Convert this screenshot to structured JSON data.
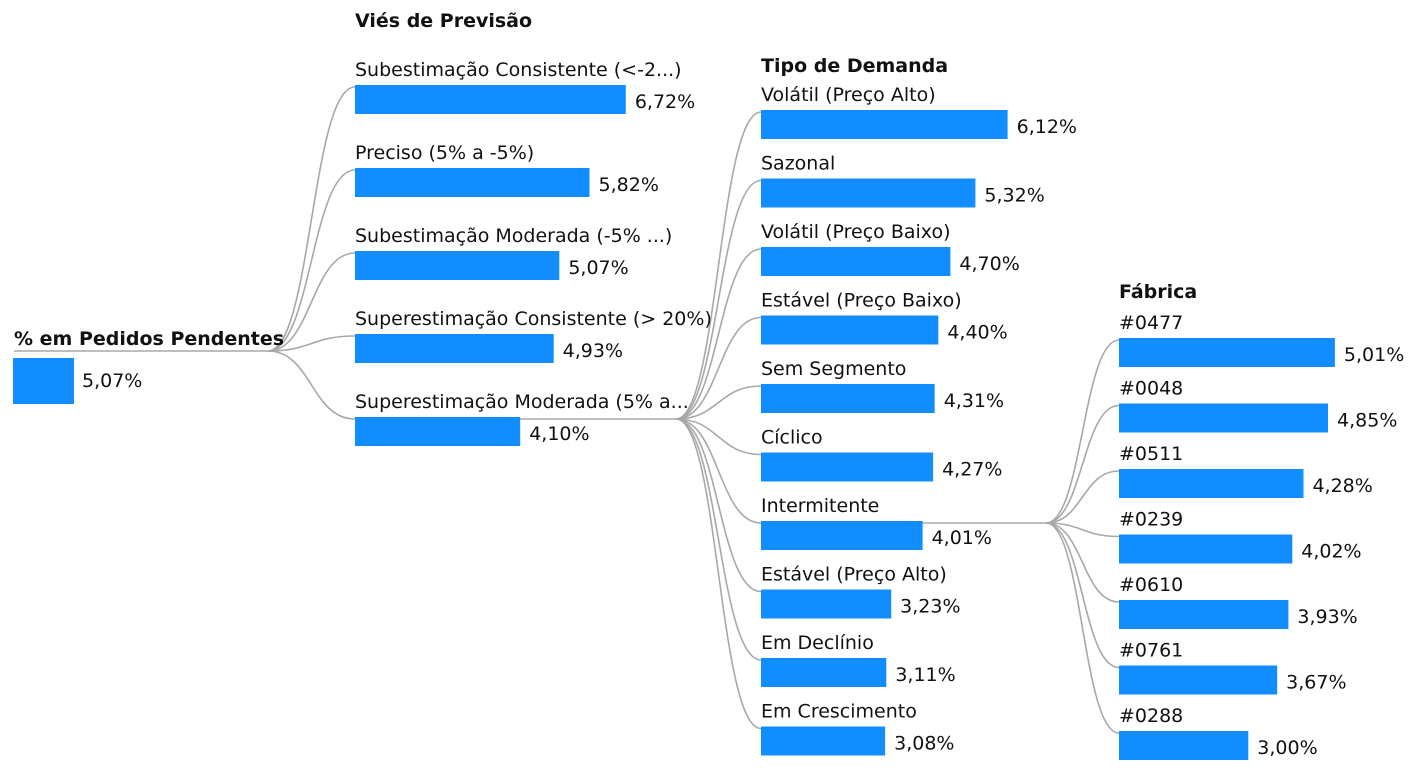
{
  "chart_data": {
    "type": "decomposition-tree",
    "root": {
      "title": "% em Pedidos Pendentes",
      "value": 5.07,
      "value_label": "5,07%"
    },
    "levels": [
      {
        "title": "Viés de Previsão",
        "expanded_index": 4,
        "nodes": [
          {
            "label": "Subestimação Consistente (<-2...)",
            "value": 6.72,
            "value_label": "6,72%"
          },
          {
            "label": "Preciso (5% a -5%)",
            "value": 5.82,
            "value_label": "5,82%"
          },
          {
            "label": "Subestimação Moderada (-5% ...)",
            "value": 5.07,
            "value_label": "5,07%"
          },
          {
            "label": "Superestimação Consistente (> 20%)",
            "value": 4.93,
            "value_label": "4,93%"
          },
          {
            "label": "Superestimação Moderada (5% a...",
            "value": 4.1,
            "value_label": "4,10%"
          }
        ]
      },
      {
        "title": "Tipo de Demanda",
        "expanded_index": 6,
        "nodes": [
          {
            "label": "Volátil (Preço Alto)",
            "value": 6.12,
            "value_label": "6,12%"
          },
          {
            "label": "Sazonal",
            "value": 5.32,
            "value_label": "5,32%"
          },
          {
            "label": "Volátil (Preço Baixo)",
            "value": 4.7,
            "value_label": "4,70%"
          },
          {
            "label": "Estável (Preço Baixo)",
            "value": 4.4,
            "value_label": "4,40%"
          },
          {
            "label": "Sem Segmento",
            "value": 4.31,
            "value_label": "4,31%"
          },
          {
            "label": "Cíclico",
            "value": 4.27,
            "value_label": "4,27%"
          },
          {
            "label": "Intermitente",
            "value": 4.01,
            "value_label": "4,01%"
          },
          {
            "label": "Estável (Preço Alto)",
            "value": 3.23,
            "value_label": "3,23%"
          },
          {
            "label": "Em Declínio",
            "value": 3.11,
            "value_label": "3,11%"
          },
          {
            "label": "Em Crescimento",
            "value": 3.08,
            "value_label": "3,08%"
          }
        ]
      },
      {
        "title": "Fábrica",
        "expanded_index": null,
        "nodes": [
          {
            "label": "#0477",
            "value": 5.01,
            "value_label": "5,01%"
          },
          {
            "label": "#0048",
            "value": 4.85,
            "value_label": "4,85%"
          },
          {
            "label": "#0511",
            "value": 4.28,
            "value_label": "4,28%"
          },
          {
            "label": "#0239",
            "value": 4.02,
            "value_label": "4,02%"
          },
          {
            "label": "#0610",
            "value": 3.93,
            "value_label": "3,93%"
          },
          {
            "label": "#0761",
            "value": 3.67,
            "value_label": "3,67%"
          },
          {
            "label": "#0288",
            "value": 3.0,
            "value_label": "3,00%"
          }
        ]
      }
    ],
    "colors": {
      "bar": "#118DFF",
      "connector": "#A8A8A8"
    }
  }
}
